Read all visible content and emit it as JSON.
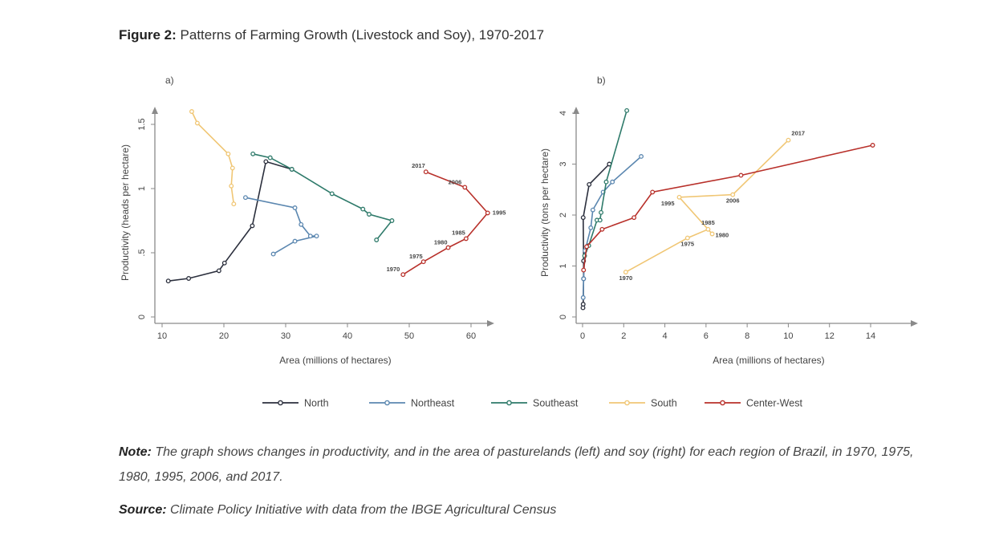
{
  "figure": {
    "label": "Figure 2:",
    "title": "Patterns of Farming Growth (Livestock and Soy), 1970-2017"
  },
  "note": {
    "label": "Note:",
    "text": "The graph shows changes in productivity, and in the area of pasturelands (left) and soy (right) for each region of Brazil, in 1970, 1975, 1980, 1995, 2006, and 2017."
  },
  "source": {
    "label": "Source:",
    "text": "Climate Policy Initiative with data from the IBGE Agricultural Census"
  },
  "legend": [
    {
      "name": "North",
      "color": "#2b2f3d"
    },
    {
      "name": "Northeast",
      "color": "#5b87b0"
    },
    {
      "name": "Southeast",
      "color": "#2e7a6a"
    },
    {
      "name": "South",
      "color": "#f0c674"
    },
    {
      "name": "Center-West",
      "color": "#b8302a"
    }
  ],
  "chart_data": [
    {
      "type": "line",
      "panel_label": "a)",
      "xlabel": "Area (millions of hectares)",
      "ylabel": "Productivity (heads per hectare)",
      "xlim": [
        10,
        63
      ],
      "ylim": [
        0,
        1.6
      ],
      "xticks": [
        10,
        20,
        30,
        40,
        50,
        60
      ],
      "yticks": [
        0,
        0.5,
        1,
        1.5
      ],
      "ytick_labels": [
        "0",
        ".5",
        "1",
        "1.5"
      ],
      "series": [
        {
          "name": "North",
          "color": "#2b2f3d",
          "x": [
            11.0,
            14.3,
            19.2,
            20.1,
            24.6,
            26.8,
            31.0
          ],
          "y": [
            0.28,
            0.3,
            0.36,
            0.42,
            0.71,
            1.21,
            1.15
          ]
        },
        {
          "name": "Northeast",
          "color": "#5b87b0",
          "x": [
            28.0,
            31.5,
            35.0,
            34.0,
            32.5,
            31.5,
            23.5
          ],
          "y": [
            0.49,
            0.59,
            0.63,
            0.63,
            0.72,
            0.85,
            0.93
          ]
        },
        {
          "name": "Southeast",
          "color": "#2e7a6a",
          "x": [
            44.7,
            47.2,
            43.5,
            42.5,
            37.5,
            31.0,
            27.5,
            24.7
          ],
          "y": [
            0.6,
            0.75,
            0.8,
            0.84,
            0.96,
            1.15,
            1.24,
            1.27
          ]
        },
        {
          "name": "South",
          "color": "#f0c674",
          "x": [
            21.6,
            21.2,
            21.4,
            20.7,
            15.7,
            14.8
          ],
          "y": [
            0.88,
            1.02,
            1.16,
            1.27,
            1.51,
            1.6
          ]
        },
        {
          "name": "Center-West",
          "color": "#b8302a",
          "x": [
            49.0,
            52.3,
            56.3,
            59.2,
            62.7,
            59.0,
            52.7
          ],
          "y": [
            0.33,
            0.43,
            0.54,
            0.61,
            0.81,
            1.01,
            1.13
          ],
          "point_labels": [
            "1970",
            "1975",
            "1980",
            "1985",
            "1995",
            "2006",
            "2017"
          ]
        }
      ]
    },
    {
      "type": "line",
      "panel_label": "b)",
      "xlabel": "Area (millions of hectares)",
      "ylabel": "Productivity (tons per hectare)",
      "xlim": [
        0,
        16
      ],
      "ylim": [
        0,
        4.1
      ],
      "xticks": [
        0,
        2,
        4,
        6,
        8,
        10,
        12,
        14
      ],
      "yticks": [
        0,
        1,
        2,
        3,
        4
      ],
      "ytick_labels": [
        "0",
        "1",
        "2",
        "3",
        "4"
      ],
      "series": [
        {
          "name": "North",
          "color": "#2b2f3d",
          "x": [
            0.02,
            0.03,
            0.05,
            0.05,
            0.03,
            0.32,
            1.3
          ],
          "y": [
            0.18,
            0.25,
            0.75,
            1.1,
            1.95,
            2.6,
            3.0
          ]
        },
        {
          "name": "Northeast",
          "color": "#5b87b0",
          "x": [
            0.03,
            0.05,
            0.12,
            0.4,
            0.5,
            1.0,
            1.45,
            2.85
          ],
          "y": [
            0.38,
            0.75,
            1.3,
            1.75,
            2.1,
            2.45,
            2.65,
            3.15
          ]
        },
        {
          "name": "Southeast",
          "color": "#2e7a6a",
          "x": [
            0.1,
            0.3,
            0.7,
            0.85,
            0.9,
            1.15,
            2.15
          ],
          "y": [
            1.2,
            1.4,
            1.9,
            1.9,
            2.05,
            2.65,
            4.05
          ]
        },
        {
          "name": "South",
          "color": "#f0c674",
          "x": [
            2.1,
            5.1,
            6.1,
            6.3,
            4.7,
            7.3,
            10.0
          ],
          "y": [
            0.88,
            1.55,
            1.72,
            1.63,
            2.35,
            2.4,
            3.47
          ],
          "point_labels": [
            "1970",
            "1975",
            "1985",
            "1980",
            "1995",
            "2006",
            "2017"
          ]
        },
        {
          "name": "Center-West",
          "color": "#b8302a",
          "x": [
            0.05,
            0.2,
            0.95,
            2.5,
            3.4,
            7.7,
            14.1
          ],
          "y": [
            0.92,
            1.38,
            1.72,
            1.95,
            2.45,
            2.78,
            3.37
          ]
        }
      ]
    }
  ]
}
